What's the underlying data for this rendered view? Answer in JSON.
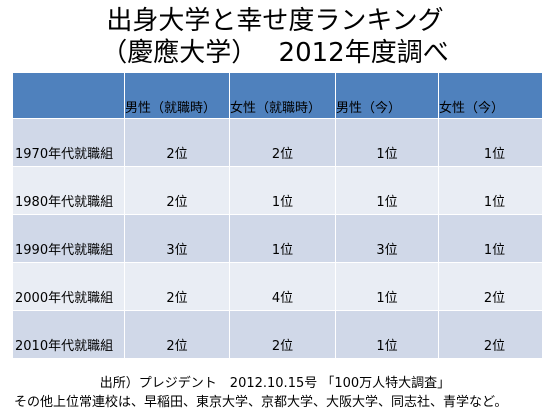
{
  "title": {
    "line1": "出身大学と幸せ度ランキング",
    "line2": "（慶應大学）　 2012年度調べ"
  },
  "table": {
    "headers": [
      "",
      "男性（就職時）",
      "女性（就職時）",
      "男性（今）",
      "女性（今）"
    ],
    "rows": [
      {
        "label": "1970年代就職組",
        "cells": [
          "2位",
          "2位",
          "1位",
          "1位"
        ]
      },
      {
        "label": "1980年代就職組",
        "cells": [
          "2位",
          "1位",
          "1位",
          "1位"
        ]
      },
      {
        "label": "1990年代就職組",
        "cells": [
          "3位",
          "1位",
          "3位",
          "1位"
        ]
      },
      {
        "label": "2000年代就職組",
        "cells": [
          "2位",
          "4位",
          "1位",
          "2位"
        ]
      },
      {
        "label": "2010年代就職組",
        "cells": [
          "2位",
          "2位",
          "1位",
          "2位"
        ]
      }
    ]
  },
  "footer": {
    "source": "出所）プレジデント　2012.10.15号 「100万人特大調査」",
    "note": "その他上位常連校は、早稲田、東京大学、京都大学、大阪大学、同志社、青学など。"
  },
  "colors": {
    "header_bg": "#4f81bd",
    "row_odd_bg": "#d0d8e8",
    "row_even_bg": "#e9edf4"
  }
}
